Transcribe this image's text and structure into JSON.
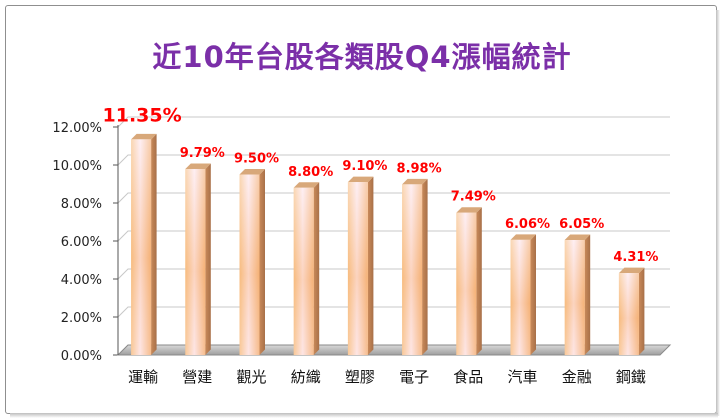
{
  "chart_data": {
    "type": "bar",
    "title": "近10年台股各類股Q4漲幅統計",
    "categories": [
      "運輸",
      "營建",
      "觀光",
      "紡織",
      "塑膠",
      "電子",
      "食品",
      "汽車",
      "金融",
      "鋼鐵"
    ],
    "values": [
      11.35,
      9.79,
      9.5,
      8.8,
      9.1,
      8.98,
      7.49,
      6.06,
      6.05,
      4.31
    ],
    "value_labels": [
      "11.35%",
      "9.79%",
      "9.50%",
      "8.80%",
      "9.10%",
      "8.98%",
      "7.49%",
      "6.06%",
      "6.05%",
      "4.31%"
    ],
    "yticks": [
      "0.00%",
      "2.00%",
      "4.00%",
      "6.00%",
      "8.00%",
      "10.00%",
      "12.00%"
    ],
    "ylim": [
      0,
      12
    ],
    "xlabel": "",
    "ylabel": "",
    "grid": true,
    "legend": "none",
    "colors": {
      "title": "#7b2fa8",
      "labels": "#ff0000",
      "bar_light": "#fde6ee",
      "bar_mid": "#f9c98a",
      "bar_dark": "#f0a060"
    }
  }
}
